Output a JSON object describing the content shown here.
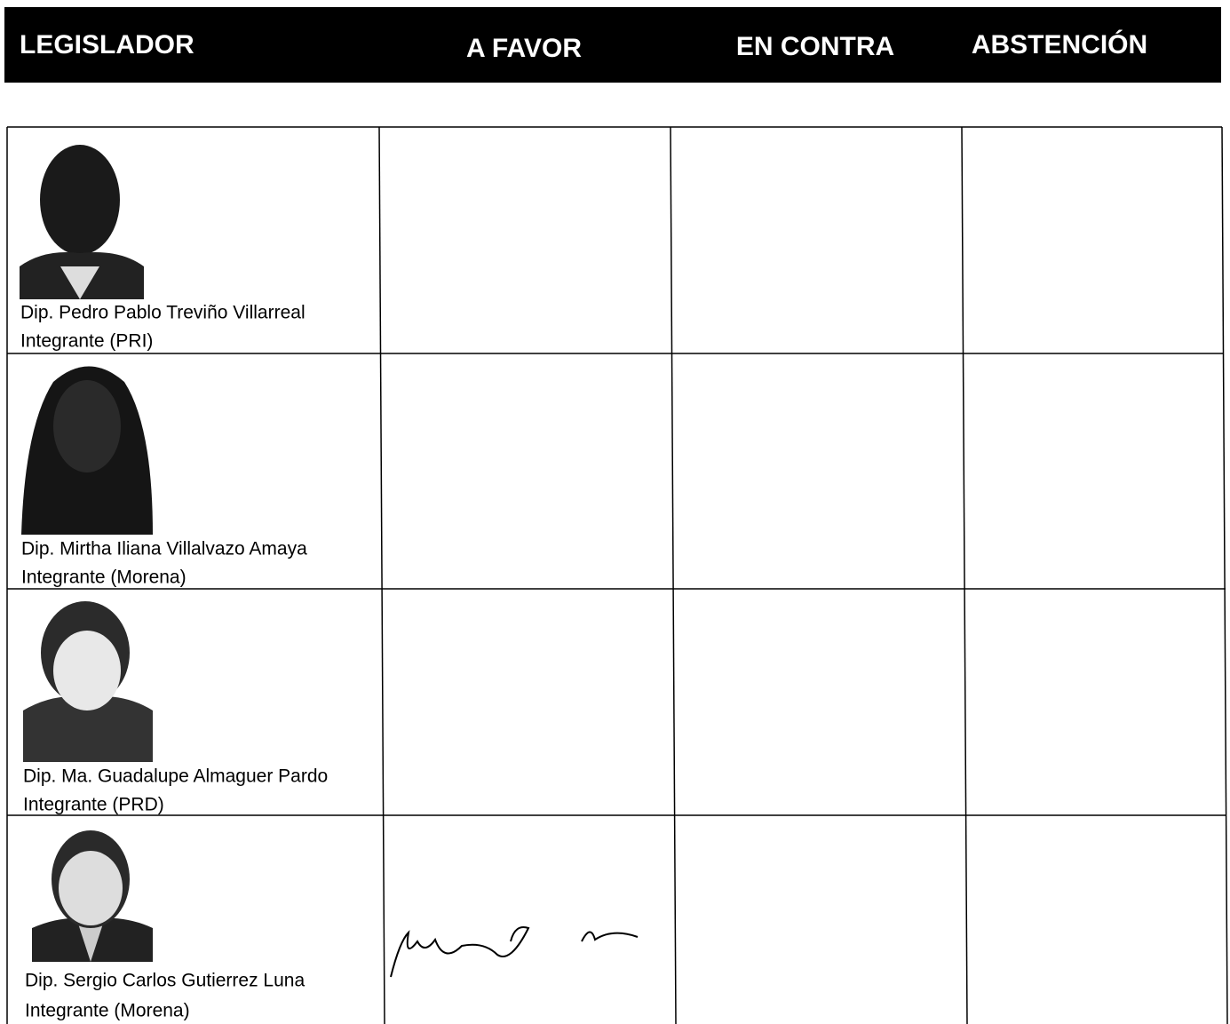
{
  "header": {
    "columns": [
      "LEGISLADOR",
      "A FAVOR",
      "EN CONTRA",
      "ABSTENCIÓN"
    ]
  },
  "rows": [
    {
      "name": "Dip. Pedro Pablo Treviño Villarreal",
      "role": "Integrante (PRI)"
    },
    {
      "name": "Dip. Mirtha Iliana Villalvazo Amaya",
      "role": "Integrante (Morena)"
    },
    {
      "name": "Dip. Ma. Guadalupe Almaguer Pardo",
      "role": "Integrante (PRD)"
    },
    {
      "name": "Dip. Sergio Carlos Gutierrez Luna",
      "role": "Integrante (Morena)"
    }
  ]
}
